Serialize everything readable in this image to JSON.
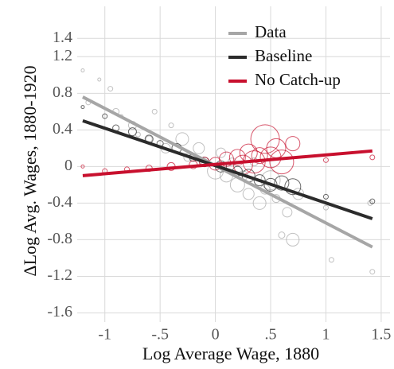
{
  "chart_data": {
    "type": "scatter",
    "x_label": "Log Average Wage, 1880",
    "y_label": "ΔLog Avg. Wages, 1880-1920",
    "xlim": [
      -1.25,
      1.58
    ],
    "ylim": [
      -1.7,
      1.75
    ],
    "xticks": [
      -1,
      {
        "value": -0.5,
        "label": "-.5"
      },
      0,
      {
        "value": 0.5,
        "label": ".5"
      },
      1,
      1.5
    ],
    "yticks": [
      1.4,
      1.2,
      0.8,
      0.4,
      0,
      -0.4,
      -0.8,
      -1.2,
      -1.6
    ],
    "grid": true,
    "legend": "top-right",
    "series": [
      {
        "name": "Data",
        "color": "#a6a6a6",
        "line": {
          "x": [
            -1.2,
            1.42
          ],
          "y": [
            0.76,
            -0.88
          ]
        },
        "points": {
          "x": [
            -1.2,
            -1.15,
            -1.05,
            -0.95,
            -0.9,
            -0.85,
            -0.75,
            -0.7,
            -0.6,
            -0.55,
            -0.45,
            -0.4,
            -0.3,
            -0.25,
            -0.15,
            -0.1,
            0,
            0.05,
            0.1,
            0.15,
            0.2,
            0.25,
            0.3,
            0.35,
            0.4,
            0.45,
            0.5,
            0.55,
            0.6,
            0.65,
            0.7,
            0.75,
            1,
            1.05,
            1.4,
            1.42
          ],
          "y": [
            1.05,
            0.7,
            0.95,
            0.85,
            0.6,
            0.55,
            0.45,
            0.35,
            0.3,
            0.6,
            0.2,
            0.45,
            0.3,
            0.1,
            0.2,
            0.05,
            -0.05,
            0.15,
            -0.1,
            0.05,
            -0.2,
            -0.1,
            -0.3,
            0.05,
            -0.4,
            -0.25,
            -0.15,
            -0.35,
            -0.75,
            -0.5,
            -0.8,
            -0.3,
            -0.45,
            -1.02,
            -0.4,
            -1.15
          ],
          "size": [
            2,
            3,
            2,
            3,
            4,
            2,
            5,
            3,
            4,
            3,
            6,
            3,
            8,
            5,
            7,
            4,
            10,
            6,
            8,
            5,
            9,
            6,
            7,
            5,
            8,
            6,
            12,
            5,
            4,
            6,
            8,
            7,
            3,
            3,
            3,
            3
          ]
        }
      },
      {
        "name": "Baseline",
        "color": "#2b2b2b",
        "line": {
          "x": [
            -1.2,
            1.42
          ],
          "y": [
            0.5,
            -0.57
          ]
        },
        "points": {
          "x": [
            -1.2,
            -1.0,
            -0.9,
            -0.75,
            -0.6,
            -0.5,
            -0.35,
            -0.2,
            -0.1,
            0.05,
            0.2,
            0.3,
            0.4,
            0.5,
            0.6,
            0.7,
            1.0,
            1.42
          ],
          "y": [
            0.65,
            0.55,
            0.42,
            0.38,
            0.3,
            0.25,
            0.2,
            0.1,
            0.05,
            0,
            -0.05,
            -0.1,
            -0.15,
            -0.2,
            -0.18,
            -0.22,
            -0.33,
            -0.38
          ],
          "size": [
            2,
            3,
            4,
            5,
            5,
            4,
            6,
            5,
            6,
            7,
            6,
            8,
            7,
            8,
            9,
            10,
            3,
            3
          ]
        }
      },
      {
        "name": "No Catch-up",
        "color": "#c8102e",
        "line": {
          "x": [
            -1.2,
            1.42
          ],
          "y": [
            -0.1,
            0.17
          ]
        },
        "points": {
          "x": [
            -1.2,
            -1.0,
            -0.8,
            -0.6,
            -0.4,
            -0.2,
            -0.1,
            0,
            0.1,
            0.2,
            0.25,
            0.3,
            0.35,
            0.4,
            0.45,
            0.5,
            0.55,
            0.6,
            0.7,
            1.0,
            1.42
          ],
          "y": [
            0,
            -0.05,
            -0.03,
            -0.02,
            0,
            0.02,
            0.05,
            0.03,
            0.08,
            0.1,
            0.02,
            0.15,
            0.05,
            0.12,
            0.3,
            0.1,
            0.2,
            0.05,
            0.25,
            0.07,
            0.1
          ],
          "size": [
            2,
            3,
            3,
            4,
            5,
            5,
            6,
            8,
            9,
            10,
            12,
            11,
            14,
            10,
            18,
            13,
            12,
            15,
            9,
            3,
            3
          ]
        }
      }
    ]
  }
}
